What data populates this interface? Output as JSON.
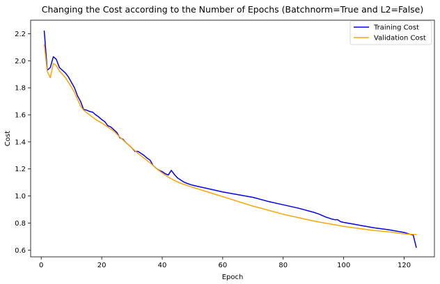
{
  "chart_data": {
    "type": "line",
    "title": "Changing the Cost according to the Number of Epochs (Batchnorm=True and L2=False)",
    "xlabel": "Epoch",
    "ylabel": "Cost",
    "xlim": [
      -3.5,
      130
    ],
    "ylim": [
      0.55,
      2.3
    ],
    "xticks": [
      0,
      20,
      40,
      60,
      80,
      100,
      120
    ],
    "yticks": [
      0.6,
      0.8,
      1.0,
      1.2,
      1.4,
      1.6,
      1.8,
      2.0,
      2.2
    ],
    "xtick_labels": [
      "0",
      "20",
      "40",
      "60",
      "80",
      "100",
      "120"
    ],
    "ytick_labels": [
      "0.6",
      "0.8",
      "1.0",
      "1.2",
      "1.4",
      "1.6",
      "1.8",
      "2.0",
      "2.2"
    ],
    "grid": false,
    "legend_position": "top-right",
    "series": [
      {
        "name": "Training Cost",
        "color": "#0000ff",
        "x": [
          1,
          2,
          3,
          4,
          5,
          6,
          7,
          8,
          9,
          10,
          11,
          12,
          13,
          14,
          15,
          16,
          17,
          18,
          19,
          20,
          21,
          22,
          23,
          24,
          25,
          26,
          27,
          28,
          29,
          30,
          31,
          32,
          33,
          34,
          35,
          36,
          37,
          38,
          39,
          40,
          41,
          42,
          43,
          44,
          45,
          46,
          47,
          48,
          50,
          52,
          55,
          60,
          65,
          70,
          75,
          80,
          85,
          90,
          92,
          94,
          96,
          97,
          98,
          99,
          100,
          105,
          110,
          115,
          120,
          123,
          124
        ],
        "y": [
          2.22,
          1.93,
          1.95,
          2.03,
          2.01,
          1.95,
          1.93,
          1.91,
          1.88,
          1.84,
          1.8,
          1.74,
          1.7,
          1.64,
          1.635,
          1.625,
          1.62,
          1.6,
          1.585,
          1.565,
          1.55,
          1.52,
          1.51,
          1.49,
          1.47,
          1.43,
          1.42,
          1.395,
          1.375,
          1.355,
          1.33,
          1.33,
          1.315,
          1.3,
          1.28,
          1.265,
          1.225,
          1.205,
          1.19,
          1.18,
          1.165,
          1.155,
          1.19,
          1.16,
          1.135,
          1.12,
          1.105,
          1.095,
          1.08,
          1.07,
          1.055,
          1.03,
          1.01,
          0.99,
          0.96,
          0.935,
          0.91,
          0.88,
          0.865,
          0.845,
          0.83,
          0.825,
          0.825,
          0.81,
          0.805,
          0.785,
          0.765,
          0.75,
          0.73,
          0.71,
          0.62
        ]
      },
      {
        "name": "Validation Cost",
        "color": "#ffa500",
        "x": [
          1,
          2,
          3,
          4,
          5,
          6,
          8,
          10,
          11,
          12,
          13,
          14,
          16,
          18,
          20,
          22,
          24,
          26,
          28,
          30,
          32,
          34,
          36,
          38,
          40,
          42,
          44,
          46,
          48,
          50,
          55,
          60,
          65,
          70,
          75,
          80,
          85,
          90,
          95,
          100,
          105,
          110,
          115,
          120,
          124
        ],
        "y": [
          2.12,
          1.92,
          1.875,
          1.98,
          1.965,
          1.925,
          1.875,
          1.805,
          1.765,
          1.715,
          1.665,
          1.635,
          1.6,
          1.565,
          1.54,
          1.51,
          1.48,
          1.435,
          1.395,
          1.355,
          1.315,
          1.28,
          1.245,
          1.205,
          1.17,
          1.14,
          1.115,
          1.095,
          1.08,
          1.065,
          1.03,
          0.995,
          0.96,
          0.925,
          0.895,
          0.865,
          0.84,
          0.815,
          0.795,
          0.775,
          0.76,
          0.745,
          0.735,
          0.72,
          0.715
        ]
      }
    ]
  }
}
